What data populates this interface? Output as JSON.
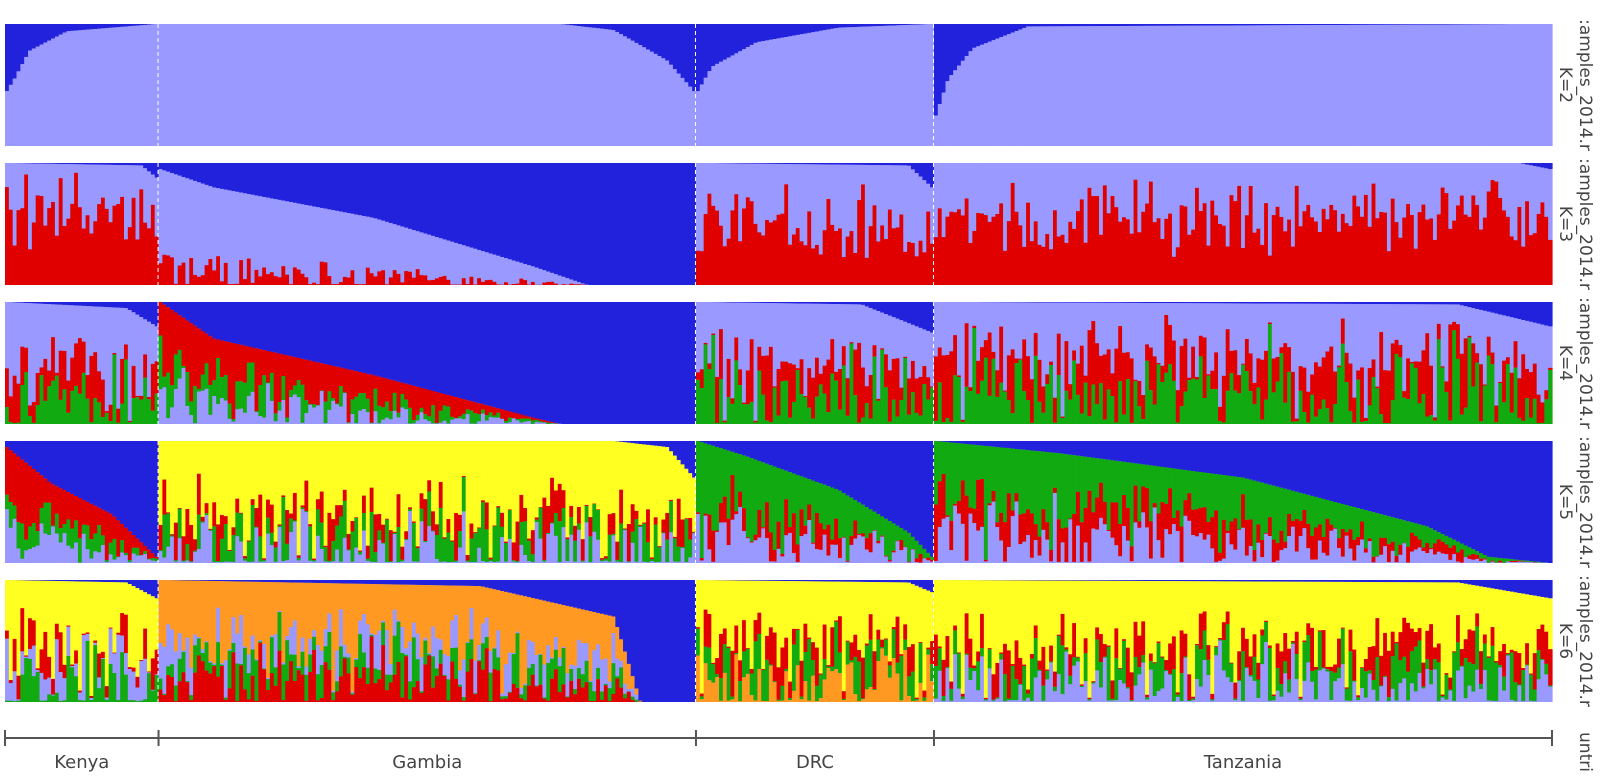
{
  "chart_data": {
    "type": "bar",
    "subtype": "stacked-admixture",
    "colors": {
      "blue": "#2222dd",
      "lavender": "#9999ff",
      "red": "#e00000",
      "green": "#11aa11",
      "yellow": "#ffff22",
      "orange": "#ff9922",
      "divider": "#ffffff",
      "axis": "#555555"
    },
    "countries": [
      {
        "name": "Kenya",
        "n": 40
      },
      {
        "name": "Gambia",
        "n": 140
      },
      {
        "name": "DRC",
        "n": 62
      },
      {
        "name": "Tanzania",
        "n": 161
      }
    ],
    "bottom_axis_label": "untri",
    "panels": [
      {
        "row_label": ":amples_2014.r",
        "k_label": "K=2",
        "k": 2,
        "components": [
          "blue",
          "lavender"
        ],
        "profiles": {
          "Kenya": {
            "top": [
              "blue"
            ],
            "curve": [
              [
                0,
                0.55
              ],
              [
                0.05,
                0.45
              ],
              [
                0.15,
                0.22
              ],
              [
                0.4,
                0.06
              ],
              [
                1,
                0.0
              ]
            ],
            "noise": 0.0
          },
          "Gambia": {
            "top": [
              "blue"
            ],
            "curve": [
              [
                0,
                0.0
              ],
              [
                0.75,
                0.0
              ],
              [
                0.85,
                0.05
              ],
              [
                0.95,
                0.3
              ],
              [
                1,
                0.55
              ]
            ],
            "noise": 0.0
          },
          "DRC": {
            "top": [
              "blue"
            ],
            "curve": [
              [
                0,
                0.55
              ],
              [
                0.06,
                0.35
              ],
              [
                0.25,
                0.15
              ],
              [
                0.6,
                0.03
              ],
              [
                1,
                0.0
              ]
            ],
            "noise": 0.0
          },
          "Tanzania": {
            "top": [
              "blue"
            ],
            "curve": [
              [
                0,
                0.75
              ],
              [
                0.02,
                0.45
              ],
              [
                0.06,
                0.2
              ],
              [
                0.15,
                0.02
              ],
              [
                1,
                0.0
              ]
            ],
            "noise": 0.0
          }
        }
      },
      {
        "row_label": ":amples_2014.r",
        "k_label": "K=3",
        "k": 3,
        "components": [
          "blue",
          "lavender",
          "red"
        ],
        "profiles": {
          "Kenya": {
            "top": [
              "blue"
            ],
            "curve": [
              [
                0,
                0.0
              ],
              [
                0.9,
                0.02
              ],
              [
                1,
                0.12
              ]
            ],
            "mix": [
              "lavender",
              "red"
            ],
            "mixBias": 0.6,
            "noise": 0.35
          },
          "Gambia": {
            "top": [
              "blue"
            ],
            "curve": [
              [
                0,
                0.05
              ],
              [
                0.1,
                0.2
              ],
              [
                0.4,
                0.45
              ],
              [
                0.7,
                0.85
              ],
              [
                0.8,
                1.0
              ],
              [
                1,
                1.0
              ]
            ],
            "mix": [
              "lavender",
              "red"
            ],
            "mixBias": 0.15,
            "noise": 0.2
          },
          "DRC": {
            "top": [
              "blue"
            ],
            "curve": [
              [
                0,
                0.0
              ],
              [
                0.9,
                0.02
              ],
              [
                1,
                0.2
              ]
            ],
            "mix": [
              "lavender",
              "red"
            ],
            "mixBias": 0.55,
            "noise": 0.35
          },
          "Tanzania": {
            "top": [
              "blue"
            ],
            "curve": [
              [
                0,
                0.0
              ],
              [
                0.95,
                0.0
              ],
              [
                1,
                0.05
              ]
            ],
            "mix": [
              "lavender",
              "red"
            ],
            "mixBias": 0.55,
            "noise": 0.35
          }
        }
      },
      {
        "row_label": ":amples_2014.r",
        "k_label": "K=4",
        "k": 4,
        "components": [
          "blue",
          "lavender",
          "red",
          "green"
        ],
        "profiles": {
          "Kenya": {
            "top": [
              "blue"
            ],
            "curve": [
              [
                0,
                0.0
              ],
              [
                0.8,
                0.05
              ],
              [
                1,
                0.2
              ]
            ],
            "mix": [
              "lavender",
              "red",
              "green"
            ],
            "mixBias": 0.45,
            "noise": 0.35
          },
          "Gambia": {
            "top": [
              "blue"
            ],
            "curve": [
              [
                0,
                0.0
              ],
              [
                0.1,
                0.3
              ],
              [
                0.4,
                0.6
              ],
              [
                0.7,
                0.95
              ],
              [
                0.75,
                1.0
              ],
              [
                1,
                1.0
              ]
            ],
            "mix": [
              "red",
              "green",
              "lavender"
            ],
            "mixBias": 0.5,
            "noise": 0.3
          },
          "DRC": {
            "top": [
              "blue"
            ],
            "curve": [
              [
                0,
                0.0
              ],
              [
                0.7,
                0.02
              ],
              [
                1,
                0.25
              ]
            ],
            "mix": [
              "lavender",
              "red",
              "green"
            ],
            "mixBias": 0.5,
            "noise": 0.35
          },
          "Tanzania": {
            "top": [
              "blue"
            ],
            "curve": [
              [
                0,
                0.0
              ],
              [
                0.85,
                0.02
              ],
              [
                1,
                0.2
              ]
            ],
            "mix": [
              "lavender",
              "red",
              "green"
            ],
            "mixBias": 0.55,
            "noise": 0.35
          }
        }
      },
      {
        "row_label": ":amples_2014.r",
        "k_label": "K=5",
        "k": 5,
        "components": [
          "blue",
          "lavender",
          "red",
          "green",
          "yellow"
        ],
        "profiles": {
          "Kenya": {
            "top": [
              "blue"
            ],
            "curve": [
              [
                0,
                0.05
              ],
              [
                0.3,
                0.35
              ],
              [
                0.7,
                0.6
              ],
              [
                1,
                0.95
              ]
            ],
            "mix": [
              "red",
              "green",
              "lavender"
            ],
            "mixBias": 0.5,
            "noise": 0.3
          },
          "Gambia": {
            "top": [
              "blue"
            ],
            "curve": [
              [
                0,
                0.0
              ],
              [
                0.85,
                0.0
              ],
              [
                0.95,
                0.05
              ],
              [
                1,
                0.3
              ]
            ],
            "mix": [
              "yellow",
              "red",
              "green",
              "lavender"
            ],
            "mixBias": 0.3,
            "noise": 0.4
          },
          "DRC": {
            "top": [
              "blue"
            ],
            "curve": [
              [
                0,
                0.0
              ],
              [
                0.2,
                0.12
              ],
              [
                0.6,
                0.4
              ],
              [
                0.9,
                0.75
              ],
              [
                1,
                0.95
              ]
            ],
            "mix": [
              "green",
              "red",
              "lavender"
            ],
            "mixBias": 0.45,
            "noise": 0.3
          },
          "Tanzania": {
            "top": [
              "blue"
            ],
            "curve": [
              [
                0,
                0.0
              ],
              [
                0.2,
                0.1
              ],
              [
                0.5,
                0.3
              ],
              [
                0.8,
                0.7
              ],
              [
                0.9,
                0.95
              ],
              [
                1,
                1.0
              ]
            ],
            "mix": [
              "green",
              "red",
              "lavender"
            ],
            "mixBias": 0.5,
            "noise": 0.3
          }
        }
      },
      {
        "row_label": ":amples_2014.r",
        "k_label": "K=6",
        "k": 6,
        "components": [
          "blue",
          "lavender",
          "red",
          "green",
          "yellow",
          "orange"
        ],
        "profiles": {
          "Kenya": {
            "top": [
              "blue"
            ],
            "curve": [
              [
                0,
                0.0
              ],
              [
                0.8,
                0.02
              ],
              [
                1,
                0.15
              ]
            ],
            "mix": [
              "yellow",
              "red",
              "lavender",
              "green"
            ],
            "mixBias": 0.4,
            "noise": 0.35
          },
          "Gambia": {
            "top": [
              "blue"
            ],
            "curve": [
              [
                0,
                0.0
              ],
              [
                0.6,
                0.05
              ],
              [
                0.85,
                0.3
              ],
              [
                0.9,
                1.0
              ],
              [
                1,
                1.0
              ]
            ],
            "mix": [
              "orange",
              "lavender",
              "green",
              "red"
            ],
            "mixBias": 0.5,
            "noise": 0.3
          },
          "DRC": {
            "top": [
              "blue"
            ],
            "curve": [
              [
                0,
                0.0
              ],
              [
                0.9,
                0.02
              ],
              [
                1,
                0.1
              ]
            ],
            "mix": [
              "yellow",
              "red",
              "green",
              "orange"
            ],
            "mixBias": 0.4,
            "noise": 0.35
          },
          "Tanzania": {
            "top": [
              "blue"
            ],
            "curve": [
              [
                0,
                0.0
              ],
              [
                0.85,
                0.02
              ],
              [
                1,
                0.15
              ]
            ],
            "mix": [
              "yellow",
              "red",
              "green",
              "lavender"
            ],
            "mixBias": 0.4,
            "noise": 0.35
          }
        }
      }
    ]
  }
}
